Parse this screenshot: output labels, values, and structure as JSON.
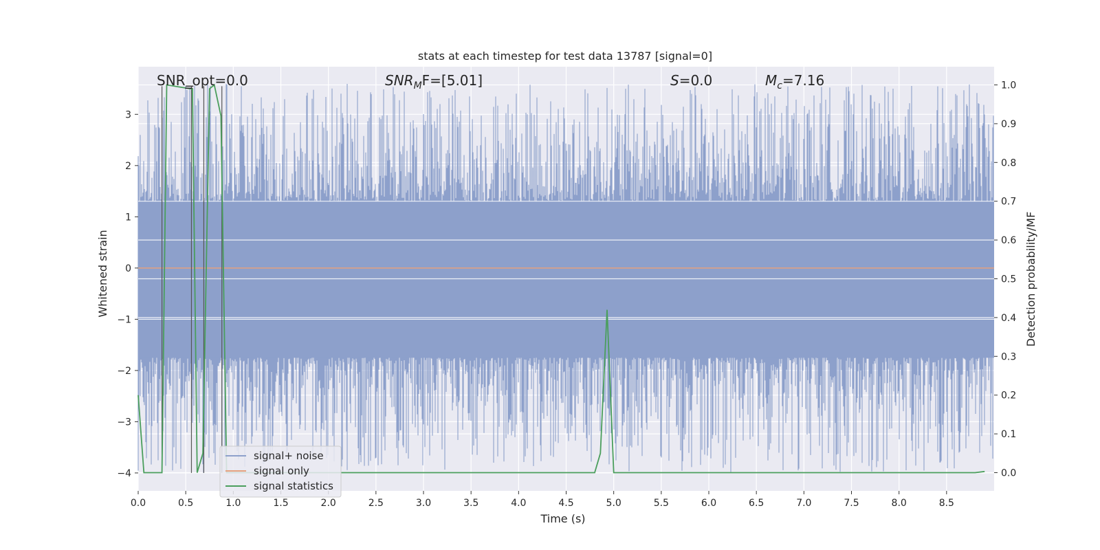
{
  "chart_data": {
    "type": "line",
    "title": "stats at each timestep for test data 13787 [signal=0]",
    "xlabel": "Time (s)",
    "ylabel": "Whitened strain",
    "y2label": "Detection probability/MF",
    "xlim": [
      0.0,
      9.0
    ],
    "ylim": [
      -4.35,
      3.93
    ],
    "y2lim": [
      -0.047,
      1.047
    ],
    "grid": true,
    "legend_position": "lower-left",
    "x_ticks": [
      "0.0",
      "0.5",
      "1.0",
      "1.5",
      "2.0",
      "2.5",
      "3.0",
      "3.5",
      "4.0",
      "4.5",
      "5.0",
      "5.5",
      "6.0",
      "6.5",
      "7.0",
      "7.5",
      "8.0",
      "8.5"
    ],
    "y_ticks": [
      "3",
      "2",
      "1",
      "0",
      "−1",
      "−2",
      "−3",
      "−4"
    ],
    "y2_ticks": [
      "1.0",
      "0.9",
      "0.8",
      "0.7",
      "0.6",
      "0.5",
      "0.4",
      "0.3",
      "0.2",
      "0.1",
      "0.0"
    ],
    "annotations": {
      "snr_opt": "SNR_opt=0.0",
      "snr_mf_sym": "SNR",
      "snr_mf_sub": "M",
      "snr_mf_rest": "F=[5.01]",
      "s_sym": "S",
      "s_rest": "=0.0",
      "mc_sym": "M",
      "mc_sub": "c",
      "mc_rest": "=7.16"
    },
    "series": [
      {
        "name": "signal+ noise",
        "color": "#8da0cb",
        "kind": "noise",
        "band_y": [
          -1.75,
          1.3
        ],
        "peak_max": 3.6,
        "trough_min": -4.0
      },
      {
        "name": "signal only",
        "color": "#e5a17e",
        "x": [
          0.0,
          9.0
        ],
        "y": [
          0.0,
          0.0
        ]
      },
      {
        "name": "signal statistics",
        "color": "#4a9e5c",
        "axis": "right",
        "x": [
          0.0,
          0.06,
          0.2,
          0.25,
          0.3,
          0.55,
          0.57,
          0.62,
          0.68,
          0.75,
          0.8,
          0.87,
          0.93,
          1.0,
          2.2,
          4.8,
          4.86,
          4.93,
          5.0,
          8.8,
          8.9
        ],
        "y": [
          0.2,
          0.0,
          0.0,
          0.0,
          1.0,
          0.99,
          0.99,
          0.0,
          0.05,
          0.99,
          1.0,
          0.92,
          0.0,
          0.0,
          0.0,
          0.0,
          0.05,
          0.42,
          0.0,
          0.0,
          0.003
        ]
      }
    ],
    "vlines_x": [
      0.25,
      0.56,
      0.69,
      0.88
    ],
    "hlines": [
      {
        "x": [
          0.5,
          0.58
        ],
        "y": 3.55
      }
    ]
  }
}
